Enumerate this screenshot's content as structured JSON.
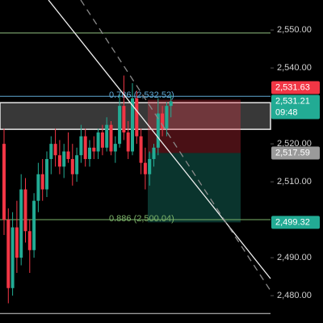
{
  "chart_data": {
    "type": "candlestick",
    "open": [
      2520,
      2500,
      2482,
      2498,
      2490,
      2508,
      2497,
      2492,
      2505,
      2512,
      2508,
      2516,
      2520,
      2517,
      2514,
      2518,
      2516,
      2512,
      2517,
      2522,
      2516,
      2519,
      2518,
      2523,
      2519,
      2525,
      2518,
      2520,
      2530,
      2523,
      2518,
      2532,
      2522,
      2515,
      2512,
      2516,
      2519,
      2528,
      2524,
      2530
    ],
    "high": [
      2524,
      2503,
      2502,
      2505,
      2512,
      2511,
      2500,
      2507,
      2515,
      2516,
      2518,
      2522,
      2524,
      2521,
      2520,
      2523,
      2520,
      2519,
      2525,
      2524,
      2521,
      2522,
      2524,
      2525,
      2527,
      2526,
      2522,
      2533,
      2538,
      2526,
      2536,
      2534,
      2524,
      2519,
      2518,
      2520,
      2532,
      2530,
      2531,
      2533
    ],
    "low": [
      2496,
      2478,
      2480,
      2486,
      2488,
      2494,
      2486,
      2490,
      2502,
      2505,
      2506,
      2512,
      2514,
      2512,
      2511,
      2515,
      2509,
      2510,
      2515,
      2514,
      2514,
      2516,
      2516,
      2517,
      2518,
      2517,
      2515,
      2519,
      2521,
      2516,
      2517,
      2520,
      2512,
      2508,
      2509,
      2514,
      2517,
      2522,
      2522,
      2527
    ],
    "close": [
      2500,
      2482,
      2498,
      2490,
      2508,
      2497,
      2492,
      2505,
      2512,
      2508,
      2516,
      2520,
      2517,
      2514,
      2518,
      2516,
      2512,
      2517,
      2522,
      2516,
      2519,
      2518,
      2523,
      2519,
      2525,
      2518,
      2520,
      2530,
      2523,
      2518,
      2532,
      2522,
      2515,
      2512,
      2516,
      2519,
      2528,
      2524,
      2530,
      2531.21
    ],
    "up_color": "#22ab94",
    "down_color": "#f23645",
    "ylim": [
      2472.8,
      2557.9
    ],
    "yticks": [
      {
        "value": 2550,
        "label": "2,550.00"
      },
      {
        "value": 2540,
        "label": "2,540.00"
      },
      {
        "value": 2520,
        "label": "2,520.00"
      },
      {
        "value": 2510,
        "label": "2,510.00"
      },
      {
        "value": 2490,
        "label": "2,490.00"
      },
      {
        "value": 2480,
        "label": "2,480.00"
      }
    ],
    "fib_levels": [
      {
        "label": "0.786 (2,532.52)",
        "value": 2532.52,
        "color": "#5fa8d3"
      },
      {
        "label": "0.886 (2,500.04)",
        "value": 2500.04,
        "color": "#7cb36a"
      }
    ],
    "lines": [
      {
        "value": 2549.2,
        "color": "#8fbf7f"
      },
      {
        "value": 2475.3,
        "color": "#cfcfcf"
      }
    ],
    "zone": [
      2530.85,
      2523.83
    ],
    "position": {
      "stop": 2531.63,
      "entry": 2517.59,
      "target": 2499.32
    },
    "price_tags": [
      {
        "label": "2,531.21",
        "time": "09:48",
        "value": 2531.21,
        "color": "#22ab94"
      },
      {
        "label": "2,531.63",
        "value": 2531.63,
        "color": "#f23645"
      },
      {
        "label": "2,517.59",
        "value": 2517.59,
        "color": "#9a9a9a"
      },
      {
        "label": "2,499.32",
        "value": 2499.32,
        "color": "#22ab94"
      }
    ]
  }
}
